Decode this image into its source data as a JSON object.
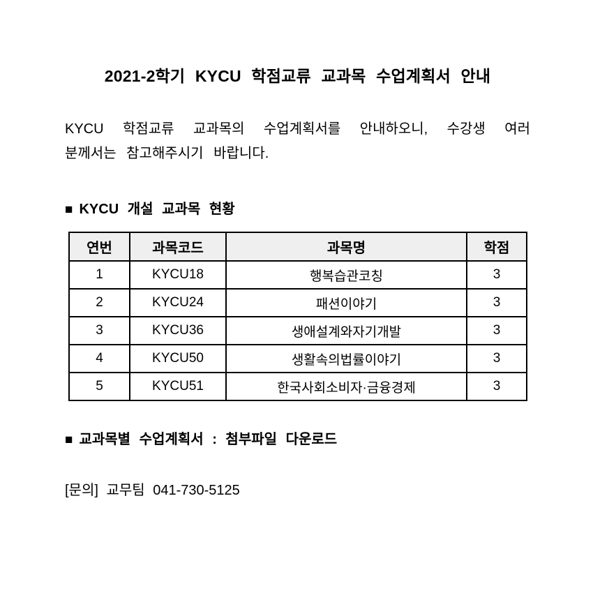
{
  "page": {
    "title": "2021-2학기 KYCU 학점교류 교과목 수업계획서 안내",
    "intro": {
      "line1": "KYCU 학점교류 교과목의 수업계획서를 안내하오니, 수강생 여러",
      "line2": "분께서는 참고해주시기 바랍니다."
    },
    "contact": "[문의] 교무팀 041-730-5125"
  },
  "sections": {
    "open_courses": {
      "bullet": "■",
      "title": "KYCU 개설 교과목 현황"
    },
    "syllabus": {
      "bullet": "■",
      "title": "교과목별 수업계획서 : 첨부파일 다운로드"
    }
  },
  "table": {
    "headers": [
      "연번",
      "과목코드",
      "과목명",
      "학점"
    ],
    "rows": [
      [
        "1",
        "KYCU18",
        "행복습관코칭",
        "3"
      ],
      [
        "2",
        "KYCU24",
        "패션이야기",
        "3"
      ],
      [
        "3",
        "KYCU36",
        "생애설계와자기개발",
        "3"
      ],
      [
        "4",
        "KYCU50",
        "생활속의법률이야기",
        "3"
      ],
      [
        "5",
        "KYCU51",
        "한국사회소비자·금융경제",
        "3"
      ]
    ],
    "header_bg": "#efefef",
    "border_color": "#000000",
    "text_color": "#000000"
  }
}
